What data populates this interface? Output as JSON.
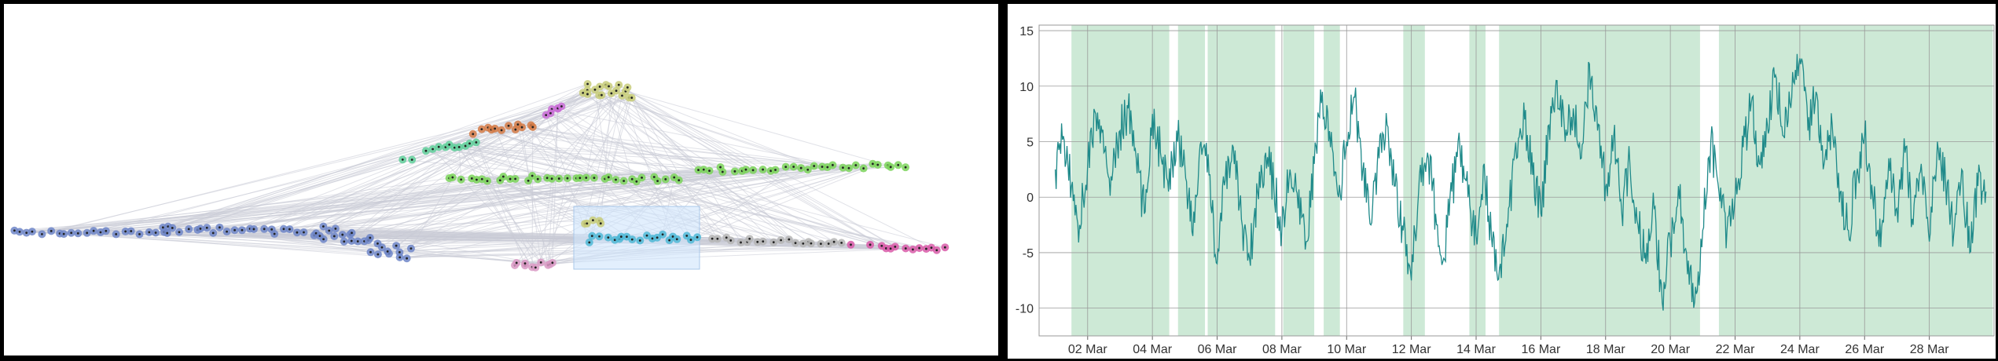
{
  "layout_panel": {
    "clusters": [
      {
        "id": "c1",
        "color": "#c8cc7a",
        "label_icon": "cluster-olive"
      },
      {
        "id": "c2",
        "color": "#c96dd6",
        "label_icon": "cluster-purple"
      },
      {
        "id": "c3",
        "color": "#d47a45",
        "label_icon": "cluster-orange"
      },
      {
        "id": "c4",
        "color": "#5fcf9a",
        "label_icon": "cluster-teal"
      },
      {
        "id": "c5",
        "color": "#7bd45a",
        "label_icon": "cluster-green"
      },
      {
        "id": "c6",
        "color": "#6f86c8",
        "label_icon": "cluster-blue"
      },
      {
        "id": "c7",
        "color": "#4fb8d6",
        "label_icon": "cluster-cyan"
      },
      {
        "id": "c8",
        "color": "#b5b5b5",
        "label_icon": "cluster-gray"
      },
      {
        "id": "c9",
        "color": "#d85aa8",
        "label_icon": "cluster-magenta"
      },
      {
        "id": "c10",
        "color": "#d99ac4",
        "label_icon": "cluster-pink"
      }
    ],
    "edge_color": "#c9cbd6",
    "selection_color": "#cfe4fb"
  },
  "chart_data": {
    "type": "line",
    "x_axis": {
      "type": "date",
      "start": "2023-03-01",
      "end": "2023-03-29",
      "tick_labels": [
        "02 Mar",
        "04 Mar",
        "06 Mar",
        "08 Mar",
        "10 Mar",
        "12 Mar",
        "14 Mar",
        "16 Mar",
        "18 Mar",
        "20 Mar",
        "22 Mar",
        "24 Mar",
        "26 Mar",
        "28 Mar"
      ]
    },
    "y_axis": {
      "range": [
        -12.5,
        15.5
      ],
      "tick_labels": [
        "15",
        "10",
        "5",
        "0",
        "-5",
        "-10"
      ],
      "ticks": [
        15,
        10,
        5,
        0,
        -5,
        -10
      ]
    },
    "grid": true,
    "series_color": "#1f8a8a",
    "band_color": "#cde9d6",
    "highlight_bands": [
      [
        "2023-03-01T12:00",
        "2023-03-04T12:30"
      ],
      [
        "2023-03-04T19:00",
        "2023-03-05T15:00"
      ],
      [
        "2023-03-05T17:00",
        "2023-03-07T19:00"
      ],
      [
        "2023-03-08T01:00",
        "2023-03-09T00:00"
      ],
      [
        "2023-03-09T07:00",
        "2023-03-09T19:00"
      ],
      [
        "2023-03-11T18:00",
        "2023-03-12T10:00"
      ],
      [
        "2023-03-13T19:00",
        "2023-03-14T07:00"
      ],
      [
        "2023-03-14T17:00",
        "2023-03-20T22:00"
      ],
      [
        "2023-03-21T12:00",
        "2023-03-29T23:00"
      ]
    ],
    "points": [
      [
        "2023-03-01T00:00",
        2.5
      ],
      [
        "2023-03-01T06:00",
        5.5
      ],
      [
        "2023-03-01T12:00",
        1.0
      ],
      [
        "2023-03-01T18:00",
        -2.5
      ],
      [
        "2023-03-02T00:00",
        3.0
      ],
      [
        "2023-03-02T06:00",
        7.5
      ],
      [
        "2023-03-02T12:00",
        4.0
      ],
      [
        "2023-03-02T18:00",
        1.5
      ],
      [
        "2023-03-03T00:00",
        6.0
      ],
      [
        "2023-03-03T06:00",
        8.0
      ],
      [
        "2023-03-03T12:00",
        3.5
      ],
      [
        "2023-03-03T18:00",
        -1.5
      ],
      [
        "2023-03-04T00:00",
        7.5
      ],
      [
        "2023-03-04T06:00",
        4.0
      ],
      [
        "2023-03-04T12:00",
        0.5
      ],
      [
        "2023-03-04T18:00",
        6.0
      ],
      [
        "2023-03-05T00:00",
        3.0
      ],
      [
        "2023-03-05T06:00",
        -3.5
      ],
      [
        "2023-03-05T12:00",
        5.0
      ],
      [
        "2023-03-05T18:00",
        2.0
      ],
      [
        "2023-03-06T00:00",
        -6.0
      ],
      [
        "2023-03-06T06:00",
        1.5
      ],
      [
        "2023-03-06T12:00",
        4.5
      ],
      [
        "2023-03-06T18:00",
        -2.0
      ],
      [
        "2023-03-07T00:00",
        -5.5
      ],
      [
        "2023-03-07T06:00",
        0.5
      ],
      [
        "2023-03-07T12:00",
        4.0
      ],
      [
        "2023-03-07T18:00",
        1.0
      ],
      [
        "2023-03-08T00:00",
        -3.0
      ],
      [
        "2023-03-08T06:00",
        2.5
      ],
      [
        "2023-03-08T12:00",
        -1.0
      ],
      [
        "2023-03-08T18:00",
        -4.0
      ],
      [
        "2023-03-09T00:00",
        3.0
      ],
      [
        "2023-03-09T06:00",
        9.5
      ],
      [
        "2023-03-09T12:00",
        4.5
      ],
      [
        "2023-03-09T18:00",
        0.0
      ],
      [
        "2023-03-10T00:00",
        5.0
      ],
      [
        "2023-03-10T06:00",
        9.0
      ],
      [
        "2023-03-10T12:00",
        2.5
      ],
      [
        "2023-03-10T18:00",
        -2.5
      ],
      [
        "2023-03-11T00:00",
        3.5
      ],
      [
        "2023-03-11T06:00",
        6.5
      ],
      [
        "2023-03-11T12:00",
        1.0
      ],
      [
        "2023-03-11T18:00",
        -3.0
      ],
      [
        "2023-03-12T00:00",
        -7.5
      ],
      [
        "2023-03-12T06:00",
        2.0
      ],
      [
        "2023-03-12T12:00",
        4.0
      ],
      [
        "2023-03-12T18:00",
        -1.5
      ],
      [
        "2023-03-13T00:00",
        -5.5
      ],
      [
        "2023-03-13T06:00",
        0.5
      ],
      [
        "2023-03-13T12:00",
        4.5
      ],
      [
        "2023-03-13T18:00",
        0.0
      ],
      [
        "2023-03-14T00:00",
        -3.5
      ],
      [
        "2023-03-14T06:00",
        3.0
      ],
      [
        "2023-03-14T12:00",
        -4.5
      ],
      [
        "2023-03-14T18:00",
        -6.0
      ],
      [
        "2023-03-15T00:00",
        -1.0
      ],
      [
        "2023-03-15T06:00",
        3.5
      ],
      [
        "2023-03-15T12:00",
        7.0
      ],
      [
        "2023-03-15T18:00",
        2.0
      ],
      [
        "2023-03-16T00:00",
        -1.5
      ],
      [
        "2023-03-16T06:00",
        6.5
      ],
      [
        "2023-03-16T12:00",
        10.5
      ],
      [
        "2023-03-16T18:00",
        5.0
      ],
      [
        "2023-03-17T00:00",
        8.0
      ],
      [
        "2023-03-17T06:00",
        3.5
      ],
      [
        "2023-03-17T12:00",
        12.0
      ],
      [
        "2023-03-17T18:00",
        6.0
      ],
      [
        "2023-03-18T00:00",
        1.0
      ],
      [
        "2023-03-18T06:00",
        5.5
      ],
      [
        "2023-03-18T12:00",
        -1.5
      ],
      [
        "2023-03-18T18:00",
        3.0
      ],
      [
        "2023-03-19T00:00",
        -2.5
      ],
      [
        "2023-03-19T06:00",
        -6.0
      ],
      [
        "2023-03-19T12:00",
        -1.0
      ],
      [
        "2023-03-19T18:00",
        -9.5
      ],
      [
        "2023-03-20T00:00",
        -4.0
      ],
      [
        "2023-03-20T06:00",
        1.0
      ],
      [
        "2023-03-20T12:00",
        -5.0
      ],
      [
        "2023-03-20T18:00",
        -9.5
      ],
      [
        "2023-03-21T00:00",
        -3.0
      ],
      [
        "2023-03-21T06:00",
        5.0
      ],
      [
        "2023-03-21T12:00",
        0.5
      ],
      [
        "2023-03-21T18:00",
        -3.0
      ],
      [
        "2023-03-22T00:00",
        0.0
      ],
      [
        "2023-03-22T06:00",
        4.5
      ],
      [
        "2023-03-22T12:00",
        8.5
      ],
      [
        "2023-03-22T18:00",
        3.0
      ],
      [
        "2023-03-23T00:00",
        6.5
      ],
      [
        "2023-03-23T06:00",
        11.0
      ],
      [
        "2023-03-23T12:00",
        5.5
      ],
      [
        "2023-03-23T18:00",
        9.0
      ],
      [
        "2023-03-24T00:00",
        12.5
      ],
      [
        "2023-03-24T06:00",
        6.0
      ],
      [
        "2023-03-24T12:00",
        9.5
      ],
      [
        "2023-03-24T18:00",
        3.0
      ],
      [
        "2023-03-25T00:00",
        6.5
      ],
      [
        "2023-03-25T06:00",
        0.5
      ],
      [
        "2023-03-25T12:00",
        -3.0
      ],
      [
        "2023-03-25T18:00",
        2.0
      ],
      [
        "2023-03-26T00:00",
        5.5
      ],
      [
        "2023-03-26T06:00",
        0.0
      ],
      [
        "2023-03-26T12:00",
        -4.5
      ],
      [
        "2023-03-26T18:00",
        3.5
      ],
      [
        "2023-03-27T00:00",
        -1.0
      ],
      [
        "2023-03-27T06:00",
        4.0
      ],
      [
        "2023-03-27T12:00",
        -2.5
      ],
      [
        "2023-03-27T18:00",
        3.0
      ],
      [
        "2023-03-28T00:00",
        -4.0
      ],
      [
        "2023-03-28T06:00",
        5.0
      ],
      [
        "2023-03-28T12:00",
        1.5
      ],
      [
        "2023-03-28T18:00",
        -3.5
      ],
      [
        "2023-03-29T00:00",
        2.5
      ],
      [
        "2023-03-29T06:00",
        -5.0
      ],
      [
        "2023-03-29T12:00",
        1.0
      ],
      [
        "2023-03-29T18:00",
        0.5
      ]
    ]
  }
}
